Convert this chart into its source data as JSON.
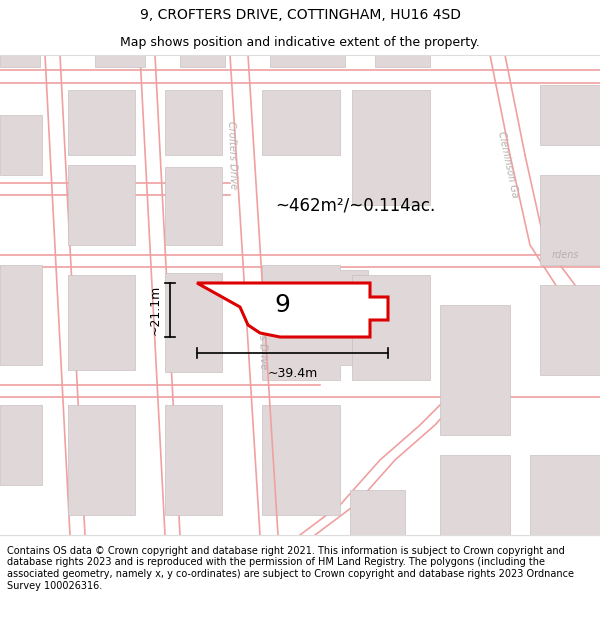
{
  "title": "9, CROFTERS DRIVE, COTTINGHAM, HU16 4SD",
  "subtitle": "Map shows position and indicative extent of the property.",
  "footer": "Contains OS data © Crown copyright and database right 2021. This information is subject to Crown copyright and database rights 2023 and is reproduced with the permission of HM Land Registry. The polygons (including the associated geometry, namely x, y co-ordinates) are subject to Crown copyright and database rights 2023 Ordnance Survey 100026316.",
  "map_bg": "#ffffff",
  "road_color": "#f5c0c0",
  "road_outline_color": "#f0a8a8",
  "building_color": "#e0d8d8",
  "building_edge": "#c8c0c0",
  "highlight_color": "#dd0000",
  "area_text": "~462m²/~0.114ac.",
  "dim_width": "~39.4m",
  "dim_height": "~21.1m",
  "road_label_color": "#b8b0b0",
  "title_fontsize": 10,
  "subtitle_fontsize": 9,
  "footer_fontsize": 7
}
